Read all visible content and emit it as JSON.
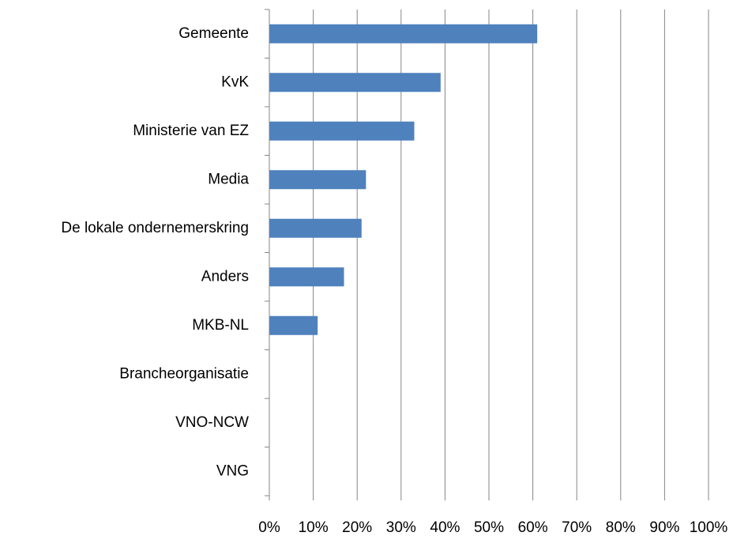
{
  "chart_data": {
    "type": "bar",
    "orientation": "horizontal",
    "categories": [
      "Gemeente",
      "KvK",
      "Ministerie van EZ",
      "Media",
      "De lokale ondernemerskring",
      "Anders",
      "MKB-NL",
      "Brancheorganisatie",
      "VNO-NCW",
      "VNG"
    ],
    "values": [
      61,
      39,
      33,
      22,
      21,
      17,
      11,
      0,
      0,
      0
    ],
    "color": "#4f81bd",
    "xlim": [
      0,
      100
    ],
    "xticks": [
      {
        "value": 0,
        "label": "0%"
      },
      {
        "value": 10,
        "label": "10%"
      },
      {
        "value": 20,
        "label": "20%"
      },
      {
        "value": 30,
        "label": "30%"
      },
      {
        "value": 40,
        "label": "40%"
      },
      {
        "value": 50,
        "label": "50%"
      },
      {
        "value": 60,
        "label": "60%"
      },
      {
        "value": 70,
        "label": "70%"
      },
      {
        "value": 80,
        "label": "80%"
      },
      {
        "value": 90,
        "label": "90%"
      },
      {
        "value": 100,
        "label": "100%"
      }
    ],
    "grid": true
  }
}
